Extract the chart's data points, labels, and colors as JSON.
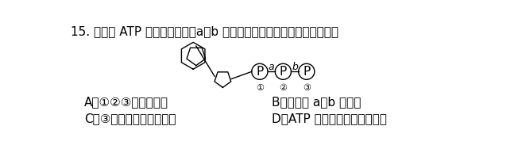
{
  "question_number": "15.",
  "question_text": "如图为 ATP 的结构示意图，a，b 代表某种化学键。下列叙述错误的是",
  "options": {
    "A": "A．①②③代表磷元素",
    "B": "B．化学键 a，b 不稳定",
    "C": "C．③具有较高的转移势能",
    "D": "D．ATP 是一种高能磷酸化合物"
  },
  "bg_color": "#ffffff",
  "text_color": "#000000",
  "font_size": 11,
  "fig_width": 6.62,
  "fig_height": 1.88,
  "dpi": 100,
  "cjk_font": "SimSun",
  "cjk_font_alternatives": [
    "SimSun",
    "STSong",
    "Noto Sans CJK SC",
    "WenQuanYi Micro Hei",
    "AR PL UMing CN",
    "TW-Kai",
    "Source Han Sans CN"
  ]
}
